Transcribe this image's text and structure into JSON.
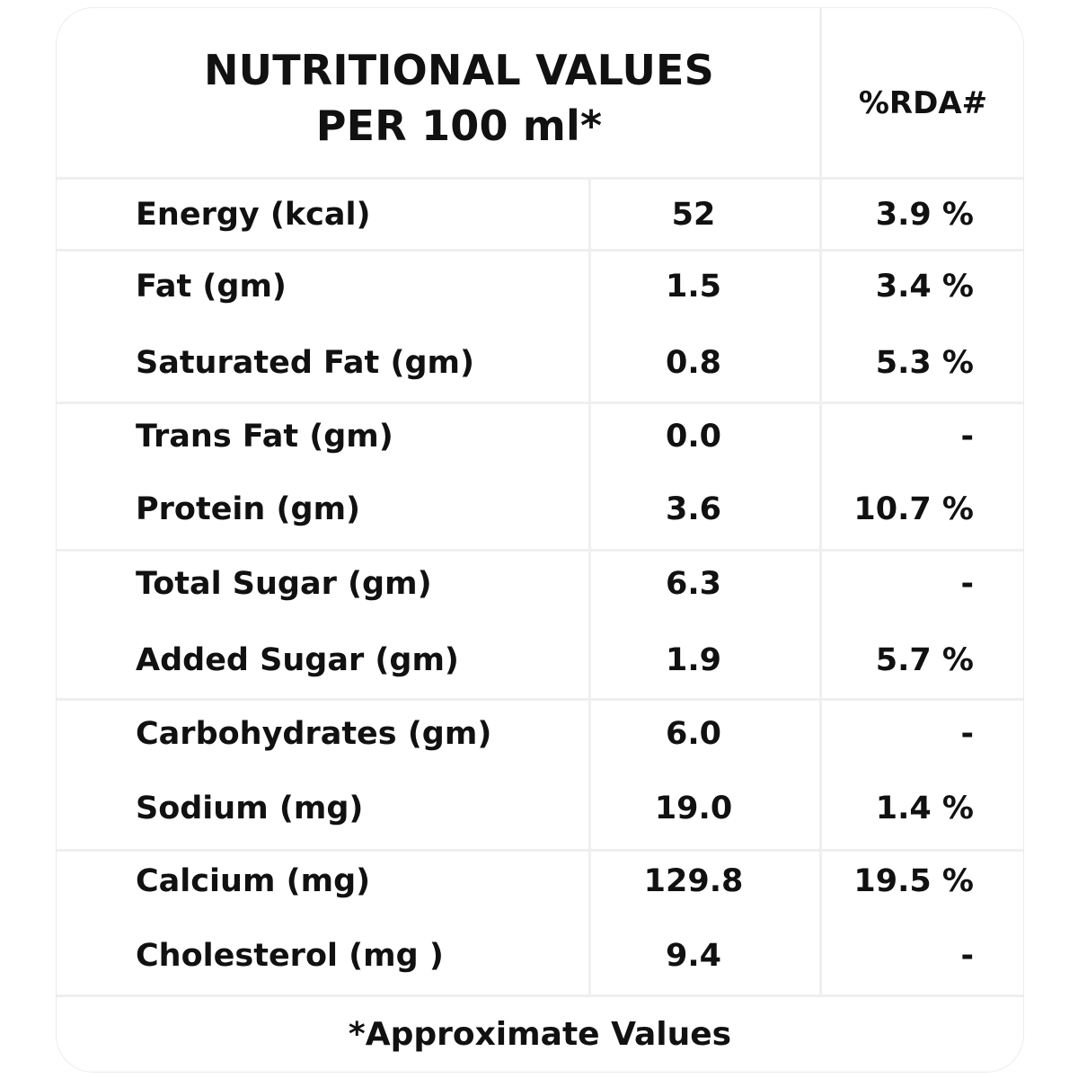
{
  "header": {
    "title_line1": "NUTRITIONAL VALUES",
    "title_line2": "PER 100 ml*",
    "rda_label": "%RDA#"
  },
  "rows": [
    {
      "name": "Energy (kcal)",
      "value": "52",
      "rda": "3.9 %"
    },
    {
      "name": "Fat (gm)",
      "value": "1.5",
      "rda": "3.4 %"
    },
    {
      "name": "Saturated Fat (gm)",
      "value": "0.8",
      "rda": "5.3 %"
    },
    {
      "name": "Trans Fat (gm)",
      "value": "0.0",
      "rda": "-"
    },
    {
      "name": "Protein (gm)",
      "value": "3.6",
      "rda": "10.7 %"
    },
    {
      "name": "Total Sugar (gm)",
      "value": "6.3",
      "rda": "-"
    },
    {
      "name": "Added Sugar (gm)",
      "value": "1.9",
      "rda": "5.7 %"
    },
    {
      "name": "Carbohydrates (gm)",
      "value": "6.0",
      "rda": "-"
    },
    {
      "name": "Sodium (mg)",
      "value": "19.0",
      "rda": "1.4 %"
    },
    {
      "name": "Calcium (mg)",
      "value": "129.8",
      "rda": "19.5 %"
    },
    {
      "name": "Cholesterol (mg )",
      "value": "9.4",
      "rda": "-"
    }
  ],
  "footnote": "*Approximate Values"
}
